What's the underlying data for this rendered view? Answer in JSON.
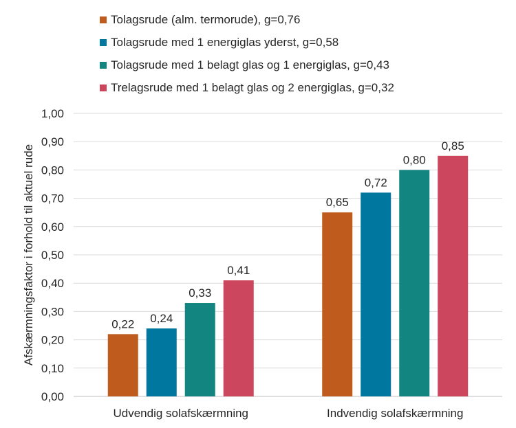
{
  "chart_data": {
    "type": "bar",
    "title": "",
    "categories": [
      "Udvendig solafskærmning",
      "Indvendig solafskærmning"
    ],
    "series": [
      {
        "name": "Tolagsrude (alm. termorude), g=0,76",
        "values": [
          0.22,
          0.65
        ],
        "labels": [
          "0,22",
          "0,65"
        ],
        "color": "#BF5B1C"
      },
      {
        "name": "Tolagsrude med 1 energiglas yderst, g=0,58",
        "values": [
          0.24,
          0.72
        ],
        "labels": [
          "0,24",
          "0,72"
        ],
        "color": "#00779F"
      },
      {
        "name": "Tolagsrude med 1 belagt glas og 1 energiglas, g=0,43",
        "values": [
          0.33,
          0.8
        ],
        "labels": [
          "0,33",
          "0,80"
        ],
        "color": "#128581"
      },
      {
        "name": "Trelagsrude med 1 belagt glas og 2 energiglas, g=0,32",
        "values": [
          0.41,
          0.85
        ],
        "labels": [
          "0,41",
          "0,85"
        ],
        "color": "#CC465E"
      }
    ],
    "xlabel": "",
    "ylabel": "Afskærmningsfaktor i forhold til aktuel rude",
    "ylim": [
      0,
      1
    ],
    "yticks": [
      0,
      0.1,
      0.2,
      0.3,
      0.4,
      0.5,
      0.6,
      0.7,
      0.8,
      0.9,
      1.0
    ],
    "ytick_labels": [
      "0,00",
      "0,10",
      "0,20",
      "0,30",
      "0,40",
      "0,50",
      "0,60",
      "0,70",
      "0,80",
      "0,90",
      "1,00"
    ],
    "grid": true,
    "legend_position": "top"
  }
}
